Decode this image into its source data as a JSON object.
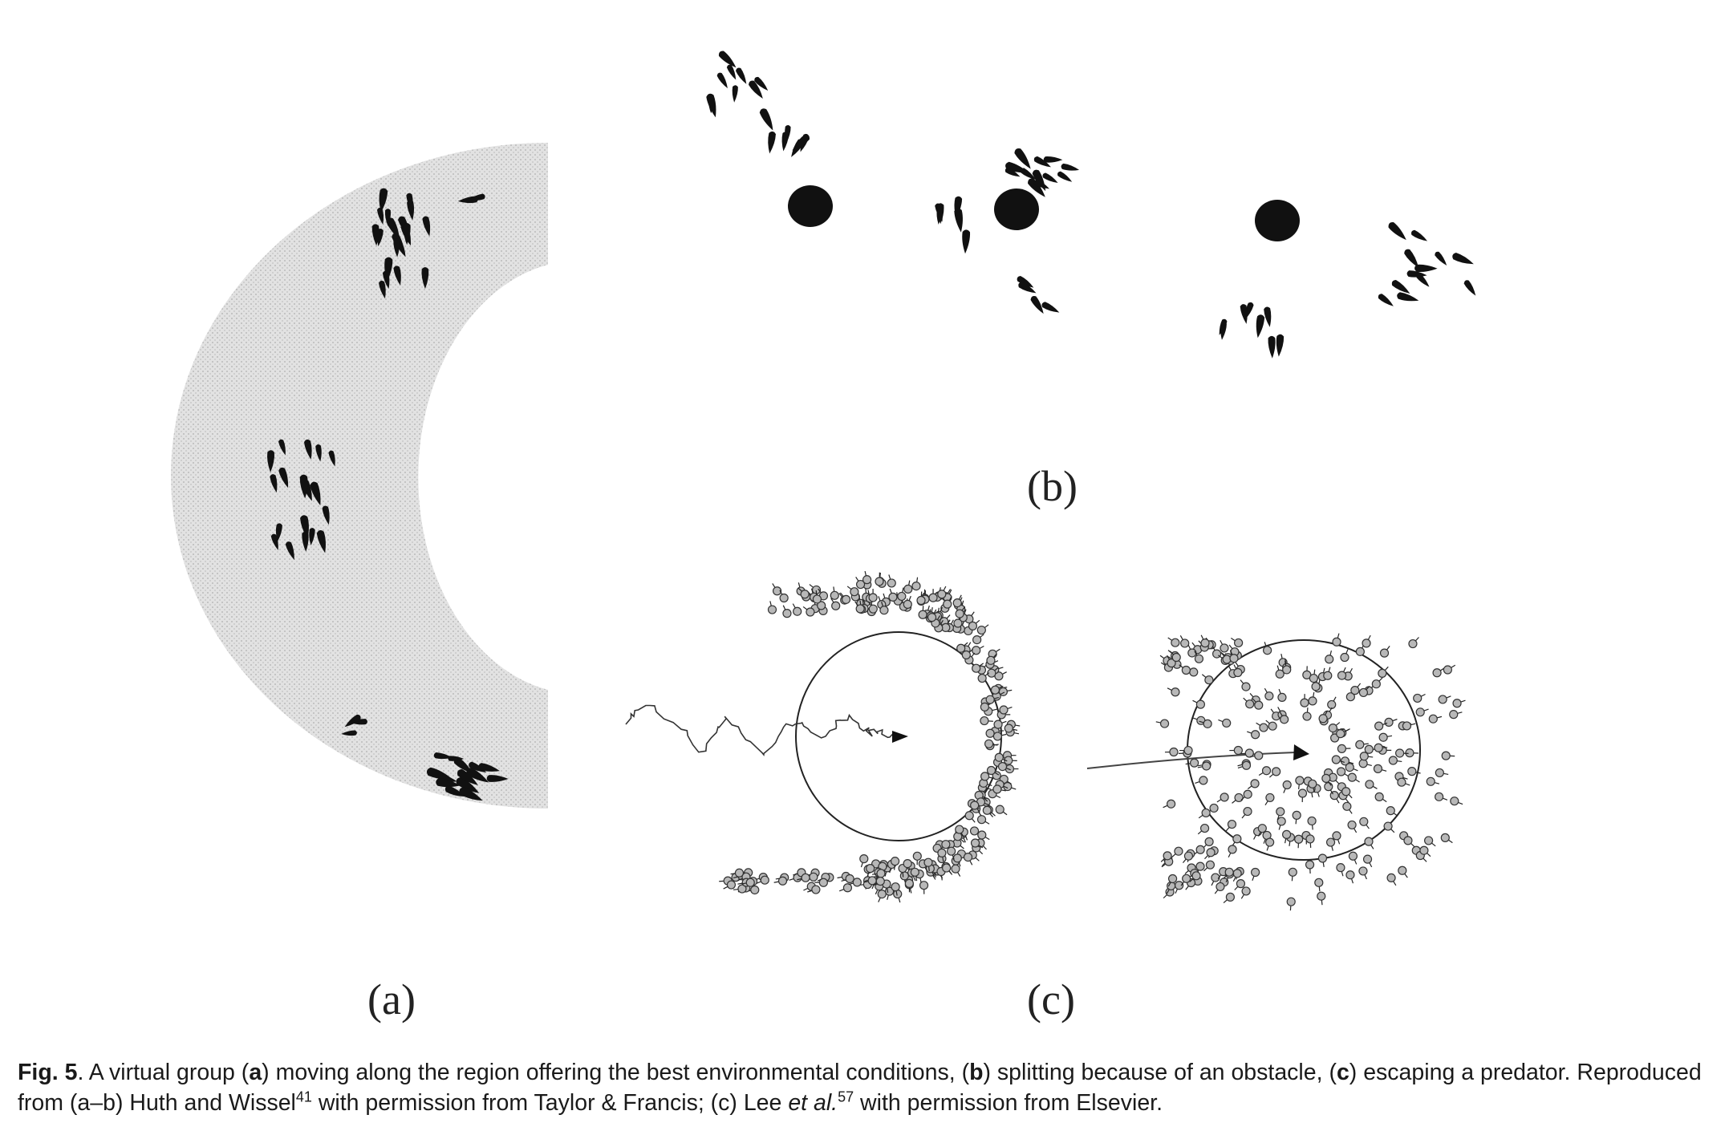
{
  "panels": {
    "a": {
      "label": "(a)"
    },
    "b": {
      "label": "(b)"
    },
    "c": {
      "label": "(c)"
    }
  },
  "caption": {
    "fig_number": "Fig. 5",
    "t1": ". A virtual group (",
    "ref_a": "a",
    "t2": ") moving along the region offering the best environmental conditions, (",
    "ref_b": "b",
    "t3": ") splitting because of an obstacle, (",
    "ref_c": "c",
    "t4": ") escaping a predator. Reproduced from (a–b) Huth and Wissel",
    "cite1": "41",
    "t5": " with permission from Taylor & Francis; (c) Lee ",
    "etal": "et al.",
    "cite2": "57",
    "t6": " with permission from Elsevier."
  },
  "colors": {
    "ink": "#111111",
    "gradient_band": "#d7d7d7",
    "agent_fill": "#b8b8b8"
  }
}
